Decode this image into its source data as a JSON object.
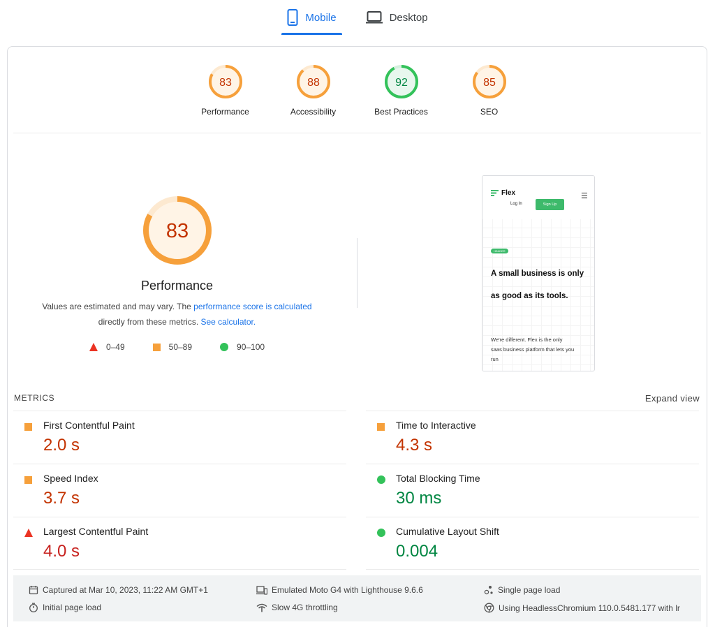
{
  "tabs": {
    "mobile": "Mobile",
    "desktop": "Desktop"
  },
  "categories": [
    {
      "label": "Performance",
      "score": 83,
      "status": "average"
    },
    {
      "label": "Accessibility",
      "score": 88,
      "status": "average"
    },
    {
      "label": "Best Practices",
      "score": 92,
      "status": "pass"
    },
    {
      "label": "SEO",
      "score": 85,
      "status": "average"
    }
  ],
  "performance": {
    "score": 83,
    "title": "Performance",
    "desc_prefix": "Values are estimated and may vary. The ",
    "desc_link1": "performance score is calculated",
    "desc_middle": " directly from these metrics. ",
    "desc_link2": "See calculator.",
    "legend": {
      "fail": "0–49",
      "average": "50–89",
      "pass": "90–100"
    }
  },
  "preview": {
    "brand": "Flex",
    "login": "Log In",
    "signup": "Sign Up",
    "badge": "HEADER",
    "headline": "A small business is only as good as its tools.",
    "body": "We're different. Flex is the only saas business platform that lets you run"
  },
  "metrics": {
    "label": "METRICS",
    "expand": "Expand view",
    "left": [
      {
        "name": "First Contentful Paint",
        "value": "2.0 s",
        "status": "average"
      },
      {
        "name": "Speed Index",
        "value": "3.7 s",
        "status": "average"
      },
      {
        "name": "Largest Contentful Paint",
        "value": "4.0 s",
        "status": "fail"
      }
    ],
    "right": [
      {
        "name": "Time to Interactive",
        "value": "4.3 s",
        "status": "average"
      },
      {
        "name": "Total Blocking Time",
        "value": "30 ms",
        "status": "pass"
      },
      {
        "name": "Cumulative Layout Shift",
        "value": "0.004",
        "status": "pass"
      }
    ]
  },
  "environment": {
    "captured": "Captured at Mar 10, 2023, 11:22 AM GMT+1",
    "initial": "Initial page load",
    "device": "Emulated Moto G4 with Lighthouse 9.6.6",
    "throttling": "Slow 4G throttling",
    "single": "Single page load",
    "browser": "Using HeadlessChromium 110.0.5481.177 with lr"
  },
  "colors": {
    "accent": "#1a73e8",
    "average": "#f6a03b",
    "average_text": "#c33300",
    "pass": "#33c25a",
    "pass_text": "#018642",
    "fail": "#eb3323"
  },
  "icons": {
    "mobile": "mobile-phone-icon",
    "desktop": "laptop-icon"
  }
}
